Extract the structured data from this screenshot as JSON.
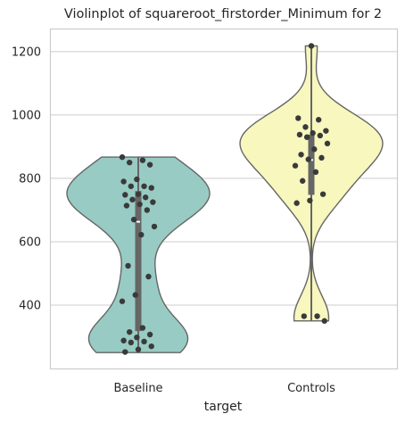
{
  "chart_data": {
    "type": "violin",
    "title": "Violinplot of squareroot_firstorder_Minimum for 2",
    "xlabel": "target",
    "ylabel": "",
    "categories": [
      "Baseline",
      "Controls"
    ],
    "y_ticks": [
      400,
      600,
      800,
      1000,
      1200
    ],
    "ylim": [
      200,
      1270
    ],
    "grid": "horizontal",
    "series": [
      {
        "category": "Baseline",
        "color": "#98cbc3",
        "range": [
          250,
          867
        ],
        "quartiles": [
          318,
          663,
          760
        ],
        "median": 663,
        "points": [
          867,
          857,
          850,
          843,
          797,
          790,
          775,
          775,
          770,
          750,
          748,
          740,
          733,
          725,
          718,
          714,
          700,
          670,
          648,
          622,
          524,
          490,
          432,
          412,
          328,
          315,
          307,
          298,
          288,
          285,
          282,
          270,
          260,
          252
        ]
      },
      {
        "category": "Controls",
        "color": "#f7f7be",
        "range": [
          350,
          1218
        ],
        "quartiles": [
          748,
          858,
          938
        ],
        "median": 858,
        "points": [
          1218,
          990,
          985,
          962,
          950,
          943,
          938,
          935,
          930,
          910,
          892,
          875,
          865,
          860,
          840,
          820,
          792,
          750,
          730,
          722,
          365,
          365,
          350
        ]
      }
    ]
  }
}
